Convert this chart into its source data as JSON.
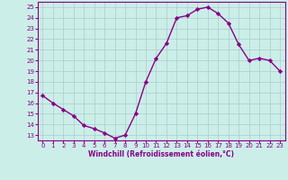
{
  "x": [
    0,
    1,
    2,
    3,
    4,
    5,
    6,
    7,
    8,
    9,
    10,
    11,
    12,
    13,
    14,
    15,
    16,
    17,
    18,
    19,
    20,
    21,
    22,
    23
  ],
  "y": [
    16.7,
    16.0,
    15.4,
    14.8,
    13.9,
    13.6,
    13.2,
    12.7,
    13.0,
    15.0,
    18.0,
    20.2,
    21.6,
    24.0,
    24.2,
    24.8,
    25.0,
    24.4,
    23.5,
    21.5,
    20.0,
    20.2,
    20.0,
    19.0
  ],
  "line_color": "#880088",
  "marker": "D",
  "marker_size": 2.2,
  "background_color": "#cceee8",
  "grid_color": "#aacccc",
  "xlabel": "Windchill (Refroidissement éolien,°C)",
  "xlabel_color": "#880088",
  "tick_color": "#880088",
  "xlim_min": -0.5,
  "xlim_max": 23.5,
  "ylim_min": 12.5,
  "ylim_max": 25.5,
  "yticks": [
    13,
    14,
    15,
    16,
    17,
    18,
    19,
    20,
    21,
    22,
    23,
    24,
    25
  ],
  "xticks": [
    0,
    1,
    2,
    3,
    4,
    5,
    6,
    7,
    8,
    9,
    10,
    11,
    12,
    13,
    14,
    15,
    16,
    17,
    18,
    19,
    20,
    21,
    22,
    23
  ],
  "spine_color": "#880088",
  "line_width": 1.0,
  "tick_fontsize": 5.0,
  "xlabel_fontsize": 5.5
}
